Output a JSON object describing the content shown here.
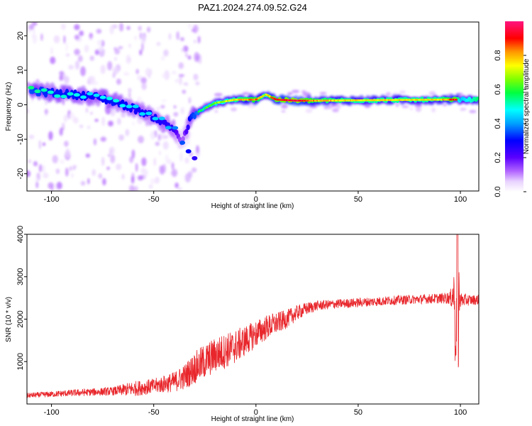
{
  "title": "PAZ1.2024.274.09.52.G24",
  "chart_data": [
    {
      "type": "heatmap",
      "xlabel": "Height of straight line (km)",
      "ylabel": "Frequency (Hz)",
      "xlim": [
        -112,
        109
      ],
      "ylim": [
        -25,
        24
      ],
      "x_ticks": [
        "-100",
        "-50",
        "0",
        "50",
        "100"
      ],
      "y_ticks": [
        "-20",
        "-10",
        "0",
        "10",
        "20"
      ],
      "colorbar": {
        "label": "Normalized spectral amplitude",
        "ticks": [
          "0.0",
          "0.2",
          "0.4",
          "0.6",
          "0.8"
        ],
        "range": [
          0,
          1
        ]
      },
      "ridge": {
        "x": [
          -110,
          -100,
          -90,
          -80,
          -70,
          -60,
          -50,
          -40,
          -36,
          -32,
          -28,
          -20,
          -10,
          0,
          5,
          8,
          10,
          20,
          30,
          50,
          70,
          90,
          98,
          100,
          109
        ],
        "y": [
          4,
          3.5,
          3,
          2.5,
          1,
          -1,
          -3.5,
          -7,
          -11,
          -4,
          -2,
          0.5,
          1.5,
          1.5,
          3,
          2,
          1.5,
          1.2,
          1.2,
          1.3,
          1.4,
          1.5,
          1.5,
          1.5,
          1.5
        ],
        "amplitude": [
          0.5,
          0.45,
          0.45,
          0.4,
          0.45,
          0.4,
          0.4,
          0.35,
          0.15,
          0.45,
          0.55,
          0.65,
          0.75,
          0.85,
          0.7,
          0.85,
          0.9,
          0.95,
          0.8,
          0.75,
          0.75,
          0.75,
          0.9,
          0.6,
          0.8
        ]
      },
      "branch": {
        "x": [
          -36,
          -33,
          -30
        ],
        "y": [
          -11,
          -13.5,
          -15.5
        ],
        "amplitude": [
          0.2,
          0.15,
          0.1
        ]
      }
    },
    {
      "type": "line",
      "xlabel": "Height of straight line (km)",
      "ylabel": "SNR (10 * v/v)",
      "xlim": [
        -112,
        109
      ],
      "ylim": [
        0,
        4000
      ],
      "x_ticks": [
        "-100",
        "-50",
        "0",
        "50",
        "100"
      ],
      "y_ticks": [
        "1000",
        "2000",
        "3000",
        "4000"
      ],
      "line_color": "#e8262b",
      "series": [
        {
          "x": [
            -112,
            -100,
            -90,
            -80,
            -70,
            -60,
            -50,
            -40,
            -35,
            -30,
            -25,
            -20,
            -15,
            -10,
            -5,
            0,
            5,
            10,
            15,
            20,
            25,
            30,
            40,
            50,
            60,
            70,
            80,
            90,
            95,
            97,
            98,
            99,
            100,
            105,
            109
          ],
          "y": [
            200,
            230,
            260,
            280,
            300,
            360,
            420,
            520,
            640,
            850,
            1000,
            1150,
            1250,
            1350,
            1500,
            1650,
            1800,
            1900,
            2000,
            2150,
            2250,
            2320,
            2360,
            2390,
            2420,
            2450,
            2470,
            2490,
            2500,
            2600,
            1600,
            2800,
            2450,
            2450,
            2460
          ],
          "noise": [
            60,
            70,
            80,
            90,
            100,
            180,
            180,
            240,
            300,
            380,
            420,
            420,
            420,
            400,
            360,
            320,
            300,
            260,
            220,
            180,
            150,
            120,
            110,
            110,
            110,
            110,
            110,
            120,
            150,
            600,
            900,
            700,
            180,
            120,
            120
          ]
        }
      ]
    }
  ]
}
